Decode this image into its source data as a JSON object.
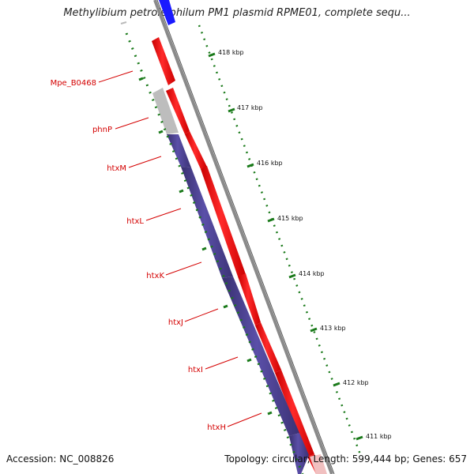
{
  "title": "Methylibium petroleiphilum PM1 plasmid RPME01, complete sequ...",
  "footer": {
    "accession": "Accession: NC_008826",
    "summary": "Topology: circular; Length: 599,444 bp; Genes: 657"
  },
  "gene_labels": [
    "Mpe_B0468",
    "phnP",
    "htxM",
    "htxL",
    "htxK",
    "htxJ",
    "htxI",
    "htxH"
  ],
  "tick_labels": [
    "418 kbp",
    "417 kbp",
    "416 kbp",
    "415 kbp",
    "414 kbp",
    "413 kbp",
    "412 kbp",
    "411 kbp"
  ],
  "colors": {
    "backbone": "#8a8a8a",
    "forward_cds": "#ff0000",
    "reverse_cds": "#4b3f94",
    "other_feature": "#bdbdbd",
    "top_feature": "#1a1aff",
    "label": "#d40000",
    "ticks": "#1a7a1a"
  }
}
